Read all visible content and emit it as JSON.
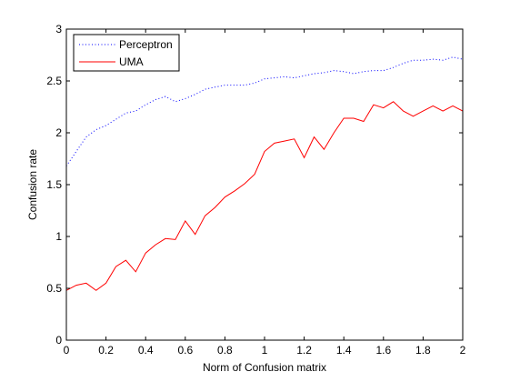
{
  "chart_data": {
    "type": "line",
    "title": "",
    "xlabel": "Norm of Confusion matrix",
    "ylabel": "Confusion rate",
    "xlim": [
      0,
      2
    ],
    "ylim": [
      0,
      3
    ],
    "xticks": [
      0,
      0.2,
      0.4,
      0.6,
      0.8,
      1,
      1.2,
      1.4,
      1.6,
      1.8,
      2
    ],
    "xtick_labels": [
      "0",
      "0.2",
      "0.4",
      "0.6",
      "0.8",
      "1",
      "1.2",
      "1.4",
      "1.6",
      "1.8",
      "2"
    ],
    "yticks": [
      0,
      0.5,
      1,
      1.5,
      2,
      2.5,
      3
    ],
    "ytick_labels": [
      "0",
      "0.5",
      "1",
      "1.5",
      "2",
      "2.5",
      "3"
    ],
    "grid": false,
    "legend_position": "top-left",
    "x": [
      0,
      0.05,
      0.1,
      0.15,
      0.2,
      0.25,
      0.3,
      0.35,
      0.4,
      0.45,
      0.5,
      0.55,
      0.6,
      0.65,
      0.7,
      0.75,
      0.8,
      0.85,
      0.9,
      0.95,
      1,
      1.05,
      1.1,
      1.15,
      1.2,
      1.25,
      1.3,
      1.35,
      1.4,
      1.45,
      1.5,
      1.55,
      1.6,
      1.65,
      1.7,
      1.75,
      1.8,
      1.85,
      1.9,
      1.95,
      2
    ],
    "series": [
      {
        "name": "Perceptron",
        "color": "#0000ff",
        "style": "dotted",
        "values": [
          1.68,
          1.82,
          1.96,
          2.03,
          2.07,
          2.13,
          2.19,
          2.21,
          2.27,
          2.32,
          2.35,
          2.3,
          2.33,
          2.37,
          2.42,
          2.44,
          2.46,
          2.46,
          2.46,
          2.48,
          2.52,
          2.53,
          2.54,
          2.53,
          2.55,
          2.57,
          2.58,
          2.6,
          2.59,
          2.57,
          2.59,
          2.6,
          2.6,
          2.63,
          2.67,
          2.7,
          2.7,
          2.71,
          2.7,
          2.73,
          2.71
        ]
      },
      {
        "name": "UMA",
        "color": "#ff0000",
        "style": "solid",
        "values": [
          0.48,
          0.53,
          0.55,
          0.48,
          0.55,
          0.71,
          0.77,
          0.66,
          0.84,
          0.92,
          0.98,
          0.97,
          1.15,
          1.02,
          1.2,
          1.28,
          1.38,
          1.44,
          1.51,
          1.6,
          1.82,
          1.9,
          1.92,
          1.94,
          1.76,
          1.96,
          1.84,
          2.0,
          2.14,
          2.14,
          2.11,
          2.27,
          2.24,
          2.3,
          2.21,
          2.16,
          2.21,
          2.26,
          2.21,
          2.26,
          2.21
        ]
      }
    ]
  }
}
